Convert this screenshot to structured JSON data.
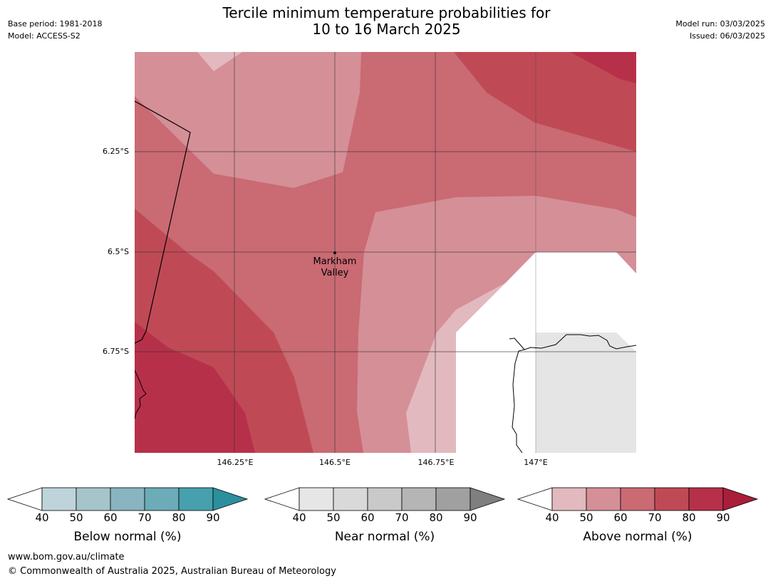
{
  "title": {
    "line1": "Tercile minimum temperature probabilities for",
    "line2": "10 to 16 March 2025"
  },
  "meta": {
    "base_period": "Base period: 1981-2018",
    "model": "Model: ACCESS-S2",
    "model_run": "Model run: 03/03/2025",
    "issued": "Issued: 06/03/2025"
  },
  "map": {
    "lat_labels": [
      "6.25°S",
      "6.5°S",
      "6.75°S"
    ],
    "lon_labels": [
      "146.25°E",
      "146.5°E",
      "146.75°E",
      "147°E"
    ],
    "place": {
      "line1": "Markham",
      "line2": "Valley"
    },
    "colors": {
      "above_40_50": "#e2b9be",
      "above_50_60": "#d58f97",
      "above_60_70": "#ca6a73",
      "above_70_80": "#bf4a56",
      "above_80_90": "#b7304a",
      "mask_gray": "#e5e5e5"
    }
  },
  "colorbars": [
    {
      "label": "Below normal (%)",
      "ticks": [
        "40",
        "50",
        "60",
        "70",
        "80",
        "90"
      ],
      "colors": [
        "#bed4da",
        "#a6c5cb",
        "#88b5c0",
        "#6cabb8",
        "#47a0ad",
        "#2b8f9e"
      ]
    },
    {
      "label": "Near normal (%)",
      "ticks": [
        "40",
        "50",
        "60",
        "70",
        "80",
        "90"
      ],
      "colors": [
        "#e6e6e6",
        "#d9d9d9",
        "#c9c9c9",
        "#b5b5b5",
        "#a0a0a0",
        "#7f7f7f"
      ]
    },
    {
      "label": "Above normal (%)",
      "ticks": [
        "40",
        "50",
        "60",
        "70",
        "80",
        "90"
      ],
      "colors": [
        "#e2b9be",
        "#d58f97",
        "#ca6a73",
        "#bf4a56",
        "#b7304a",
        "#ab1e3a"
      ]
    }
  ],
  "footer": {
    "url": "www.bom.gov.au/climate",
    "copyright": "© Commonwealth of Australia 2025, Australian Bureau of Meteorology"
  }
}
